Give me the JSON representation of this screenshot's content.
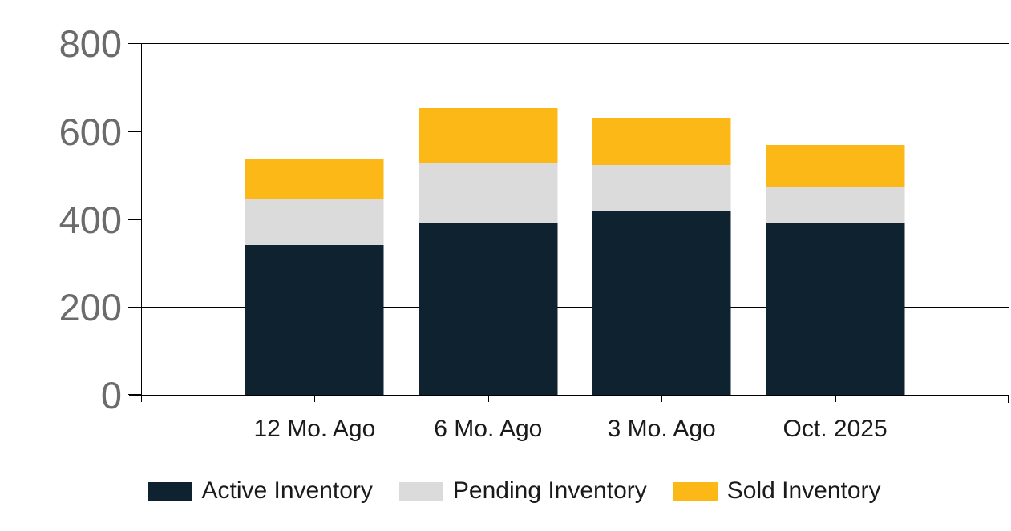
{
  "chart_data": {
    "type": "bar",
    "stacked": true,
    "title": "",
    "categories": [
      "12 Mo. Ago",
      "6 Mo. Ago",
      "3 Mo. Ago",
      "Oct. 2025"
    ],
    "series": [
      {
        "name": "Active Inventory",
        "color": "#0F2230",
        "values": [
          340,
          390,
          417,
          392
        ]
      },
      {
        "name": "Pending Inventory",
        "color": "#DBDBDB",
        "values": [
          105,
          136,
          106,
          80
        ]
      },
      {
        "name": "Sold Inventory",
        "color": "#FBB817",
        "values": [
          90,
          127,
          108,
          97
        ]
      }
    ],
    "ylim": [
      0,
      800
    ],
    "yticks": [
      0,
      200,
      400,
      600,
      800
    ],
    "ytick_labels": [
      "0",
      "200",
      "400",
      "600",
      "800"
    ],
    "grid": true,
    "legend_position": "bottom",
    "background_color": "#FFFFFF",
    "axis_color": "#000000",
    "ytick_label_color": "#6B6B6B",
    "xtick_label_color": "#1A1A1A"
  }
}
